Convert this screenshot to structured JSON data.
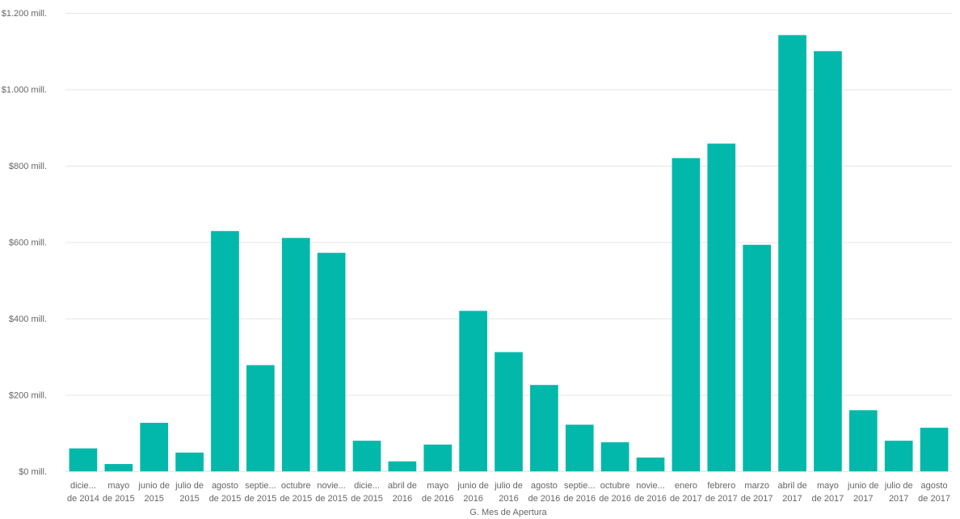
{
  "chart_data": {
    "type": "bar",
    "xlabel": "G. Mes de Apertura",
    "ylabel": "",
    "ylim": [
      0,
      1200
    ],
    "yticks": [
      0,
      200,
      400,
      600,
      800,
      1000,
      1200
    ],
    "ytick_labels": [
      "$0 mill.",
      "$200 mill.",
      "$400 mill.",
      "$600 mill.",
      "$800 mill.",
      "$1.000 mill.",
      "$1.200 mill."
    ],
    "grid": true,
    "bar_color": "#01B8AA",
    "categories": [
      [
        "dicie...",
        "de 2014"
      ],
      [
        "mayo",
        "de 2015"
      ],
      [
        "junio de",
        "2015"
      ],
      [
        "julio de",
        "2015"
      ],
      [
        "agosto",
        "de 2015"
      ],
      [
        "septie...",
        "de 2015"
      ],
      [
        "octubre",
        "de 2015"
      ],
      [
        "novie...",
        "de 2015"
      ],
      [
        "dicie...",
        "de 2015"
      ],
      [
        "abril de",
        "2016"
      ],
      [
        "mayo",
        "de 2016"
      ],
      [
        "junio de",
        "2016"
      ],
      [
        "julio de",
        "2016"
      ],
      [
        "agosto",
        "de 2016"
      ],
      [
        "septie...",
        "de 2016"
      ],
      [
        "octubre",
        "de 2016"
      ],
      [
        "novie...",
        "de 2016"
      ],
      [
        "enero",
        "de 2017"
      ],
      [
        "febrero",
        "de 2017"
      ],
      [
        "marzo",
        "de 2017"
      ],
      [
        "abril de",
        "2017"
      ],
      [
        "mayo",
        "de 2017"
      ],
      [
        "junio de",
        "2017"
      ],
      [
        "julio de",
        "2017"
      ],
      [
        "agosto",
        "de 2017"
      ]
    ],
    "values": [
      60,
      19,
      127,
      49,
      629,
      278,
      611,
      572,
      80,
      26,
      70,
      420,
      312,
      226,
      122,
      76,
      36,
      820,
      858,
      593,
      1142,
      1100,
      160,
      80,
      114
    ]
  }
}
